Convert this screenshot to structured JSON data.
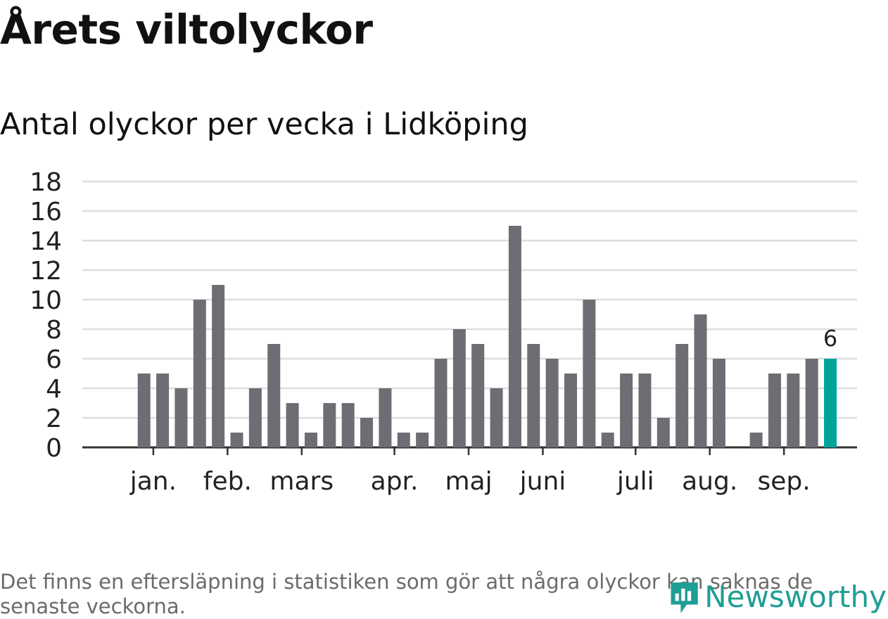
{
  "title": "Årets viltolyckor",
  "subtitle": "Antal olyckor per vecka i Lidköping",
  "footnote": "Det finns en eftersläpning i statistiken som gör att några olyckor kan saknas de senaste veckorna.",
  "logo": {
    "text": "Newsworthy",
    "icon": "newsworthy-logo-icon"
  },
  "colors": {
    "bar": "#6e6d73",
    "highlight": "#00a49a",
    "grid": "#dddddd",
    "axis": "#333333",
    "text": "#222222"
  },
  "chart_data": {
    "type": "bar",
    "title": "Antal olyckor per vecka i Lidköping",
    "xlabel": "",
    "ylabel": "",
    "ylim": [
      0,
      18
    ],
    "yticks": [
      0,
      2,
      4,
      6,
      8,
      10,
      12,
      14,
      16,
      18
    ],
    "grid": true,
    "weeks": [
      1,
      2,
      3,
      4,
      5,
      6,
      7,
      8,
      9,
      10,
      11,
      12,
      13,
      14,
      15,
      16,
      17,
      18,
      19,
      20,
      21,
      22,
      23,
      24,
      25,
      26,
      27,
      28,
      29,
      30,
      31,
      32,
      33,
      34,
      35,
      36,
      37,
      38,
      39,
      40
    ],
    "values": [
      0,
      0,
      5,
      5,
      4,
      10,
      11,
      1,
      4,
      7,
      3,
      1,
      3,
      3,
      2,
      4,
      1,
      1,
      6,
      8,
      7,
      4,
      15,
      7,
      6,
      5,
      10,
      1,
      5,
      5,
      2,
      7,
      9,
      6,
      0,
      1,
      5,
      5,
      6,
      6
    ],
    "highlight_index": 39,
    "highlight_label": "6",
    "month_labels": [
      {
        "label": "jan.",
        "week": 3.5
      },
      {
        "label": "feb.",
        "week": 7.5
      },
      {
        "label": "mars",
        "week": 11.5
      },
      {
        "label": "apr.",
        "week": 16.5
      },
      {
        "label": "maj",
        "week": 20.5
      },
      {
        "label": "juni",
        "week": 24.5
      },
      {
        "label": "juli",
        "week": 29.5
      },
      {
        "label": "aug.",
        "week": 33.5
      },
      {
        "label": "sep.",
        "week": 37.5
      }
    ]
  }
}
